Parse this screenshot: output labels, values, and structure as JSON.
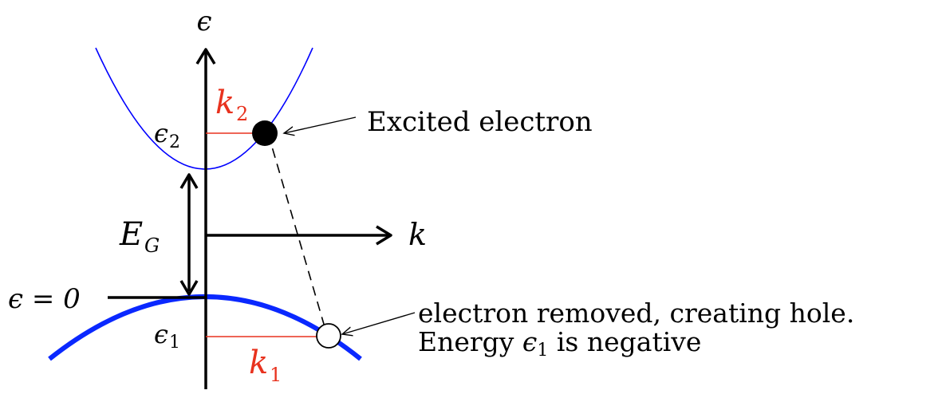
{
  "diagram": {
    "axes": {
      "energy_axis_label": "ϵ",
      "momentum_axis_label": "k"
    },
    "levels": {
      "epsilon_zero": "ϵ = 0",
      "epsilon_2": "ϵ",
      "epsilon_2_sub": "2",
      "epsilon_1": "ϵ",
      "epsilon_1_sub": "1"
    },
    "gap": {
      "label": "E",
      "sub": "G"
    },
    "momenta": {
      "k2": "k",
      "k2_sub": "2",
      "k1": "k",
      "k1_sub": "1"
    },
    "annotations": {
      "excited_electron": "Excited electron",
      "hole_line1": "electron removed, creating hole.",
      "hole_line2_prefix": "Energy ",
      "hole_line2_symbol": "ϵ",
      "hole_line2_sub": "1",
      "hole_line2_suffix": " is negative"
    },
    "colors": {
      "conduction_band": "#0000ff",
      "valence_band": "#0a28ff",
      "momentum_arrow": "#e8321e",
      "axes": "#000000"
    }
  }
}
